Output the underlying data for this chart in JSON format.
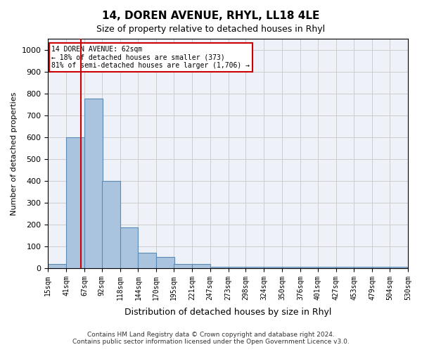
{
  "title1": "14, DOREN AVENUE, RHYL, LL18 4LE",
  "title2": "Size of property relative to detached houses in Rhyl",
  "xlabel": "Distribution of detached houses by size in Rhyl",
  "ylabel": "Number of detached properties",
  "bins": [
    15,
    41,
    67,
    92,
    118,
    144,
    170,
    195,
    221,
    247,
    273,
    298,
    324,
    350,
    376,
    401,
    427,
    453,
    479,
    504,
    530
  ],
  "values": [
    20,
    600,
    775,
    400,
    185,
    70,
    50,
    20,
    20,
    5,
    5,
    5,
    5,
    5,
    5,
    5,
    5,
    5,
    5,
    5
  ],
  "bar_color": "#aac4e0",
  "bar_edge_color": "#5b8ab5",
  "grid_color": "#cccccc",
  "bg_color": "#eef2f8",
  "property_size": 62,
  "property_label": "14 DOREN AVENUE: 62sqm",
  "annotation_line1": "14 DOREN AVENUE: 62sqm",
  "annotation_line2": "← 18% of detached houses are smaller (373)",
  "annotation_line3": "81% of semi-detached houses are larger (1,706) →",
  "vline_color": "#cc0000",
  "annotation_box_color": "#cc0000",
  "ylim": [
    0,
    1050
  ],
  "yticks": [
    0,
    100,
    200,
    300,
    400,
    500,
    600,
    700,
    800,
    900,
    1000
  ],
  "footer1": "Contains HM Land Registry data © Crown copyright and database right 2024.",
  "footer2": "Contains public sector information licensed under the Open Government Licence v3.0."
}
